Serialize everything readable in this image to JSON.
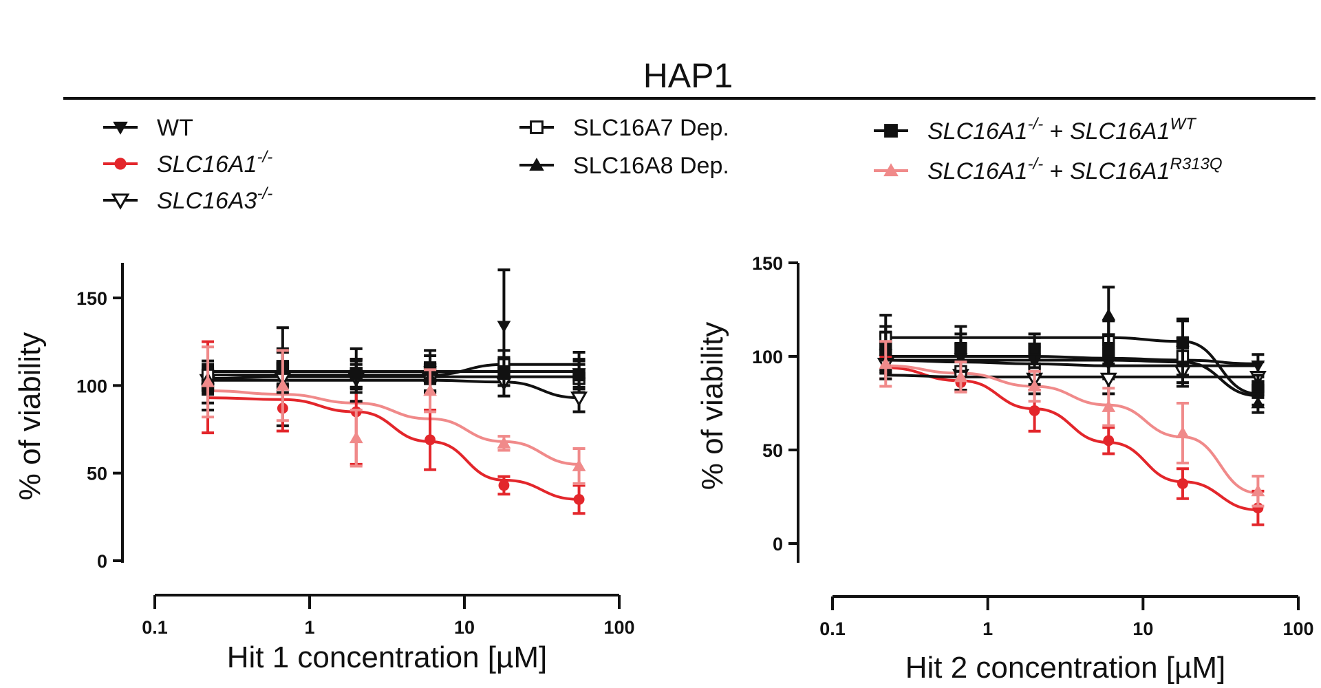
{
  "figure": {
    "title": "HAP1",
    "legend": [
      {
        "key": "wt",
        "parts": [
          {
            "text": "WT"
          }
        ]
      },
      {
        "key": "ko_a1",
        "parts": [
          {
            "text": "SLC16A1",
            "italic": true
          },
          {
            "text": "-/-",
            "sup": true,
            "italic": true
          }
        ]
      },
      {
        "key": "ko_a3",
        "parts": [
          {
            "text": "SLC16A3",
            "italic": true
          },
          {
            "text": "-/-",
            "sup": true,
            "italic": true
          }
        ]
      },
      {
        "key": "dep_a7",
        "parts": [
          {
            "text": "SLC16A7 Dep."
          }
        ]
      },
      {
        "key": "dep_a8",
        "parts": [
          {
            "text": "SLC16A8 Dep."
          }
        ]
      },
      {
        "key": "resc_wt",
        "parts": [
          {
            "text": "SLC16A1",
            "italic": true
          },
          {
            "text": "-/-",
            "sup": true,
            "italic": true
          },
          {
            "text": " + "
          },
          {
            "text": "SLC16A1",
            "italic": true
          },
          {
            "text": "WT",
            "sup": true,
            "italic": true
          }
        ]
      },
      {
        "key": "resc_mut",
        "parts": [
          {
            "text": "SLC16A1",
            "italic": true
          },
          {
            "text": "-/-",
            "sup": true,
            "italic": true
          },
          {
            "text": " + "
          },
          {
            "text": "SLC16A1",
            "italic": true
          },
          {
            "text": "R313Q",
            "sup": true,
            "italic": true
          }
        ]
      }
    ],
    "colors": {
      "black": "#111111",
      "red": "#e3262b",
      "pink": "#f08a8a"
    }
  },
  "chart_data": [
    {
      "type": "line",
      "xscale": "log",
      "xlabel": "Hit 1 concentration [µM]",
      "ylabel": "% of viability",
      "xlim": [
        0.1,
        100
      ],
      "ylim": [
        0,
        170
      ],
      "xticks": [
        0.1,
        1,
        10,
        100
      ],
      "xtick_labels": [
        "0.1",
        "1",
        "10",
        "100"
      ],
      "yticks": [
        0,
        50,
        100,
        150
      ],
      "ytick_labels": [
        "0",
        "50",
        "100",
        "150"
      ],
      "x": [
        0.22,
        0.67,
        2,
        6,
        18,
        55
      ],
      "series": [
        {
          "name": "WT",
          "marker": "tri-down",
          "color": "#111111",
          "values": [
            98,
            105,
            106,
            108,
            134,
            107
          ],
          "errors": [
            12,
            28,
            15,
            12,
            32,
            12
          ],
          "fit": [
            108,
            108,
            108,
            108,
            108,
            108
          ]
        },
        {
          "name": "SLC16A1-/-",
          "marker": "circle",
          "color": "#e3262b",
          "values": [
            99,
            87,
            85,
            69,
            43,
            35
          ],
          "errors": [
            26,
            13,
            30,
            17,
            5,
            8
          ],
          "fit": [
            93,
            92,
            85,
            68,
            46,
            35
          ]
        },
        {
          "name": "SLC16A3-/-",
          "marker": "tri-down-open",
          "color": "#111111",
          "values": [
            103,
            104,
            104,
            104,
            102,
            93
          ],
          "errors": [
            8,
            8,
            8,
            8,
            8,
            8
          ],
          "fit": [
            103,
            103,
            103,
            103,
            102,
            93
          ]
        },
        {
          "name": "SLC16A7 Dep.",
          "marker": "square-open",
          "color": "#111111",
          "values": [
            106,
            111,
            107,
            105,
            112,
            104
          ],
          "errors": [
            8,
            10,
            8,
            8,
            8,
            8
          ],
          "fit": [
            106,
            106,
            106,
            106,
            112,
            112
          ]
        },
        {
          "name": "SLC16A8 Dep.",
          "marker": "tri-up",
          "color": "#111111",
          "values": [
            104,
            109,
            106,
            105,
            108,
            107
          ],
          "errors": [
            8,
            10,
            8,
            8,
            8,
            8
          ],
          "fit": [
            104,
            105,
            105,
            105,
            105,
            105
          ]
        },
        {
          "name": "SLC16A1-/- + SLC16A1WT",
          "marker": "square",
          "color": "#111111",
          "values": [
            100,
            110,
            107,
            109,
            108,
            106
          ],
          "errors": [
            10,
            10,
            8,
            8,
            8,
            8
          ],
          "fit": [
            108,
            108,
            108,
            108,
            108,
            108
          ]
        },
        {
          "name": "SLC16A1-/- + SLC16A1R313Q",
          "marker": "tri-up",
          "color": "#f08a8a",
          "values": [
            102,
            100,
            70,
            97,
            67,
            54
          ],
          "errors": [
            20,
            20,
            16,
            12,
            4,
            10
          ],
          "fit": [
            97,
            95,
            90,
            81,
            68,
            55
          ]
        }
      ]
    },
    {
      "type": "line",
      "xscale": "log",
      "xlabel": "Hit 2 concentration [µM]",
      "ylabel": "% of viability",
      "xlim": [
        0.1,
        100
      ],
      "ylim": [
        -10,
        150
      ],
      "xticks": [
        0.1,
        1,
        10,
        100
      ],
      "xtick_labels": [
        "0.1",
        "1",
        "10",
        "100"
      ],
      "yticks": [
        0,
        50,
        100,
        150
      ],
      "ytick_labels": [
        "0",
        "50",
        "100",
        "150"
      ],
      "x": [
        0.22,
        0.67,
        2,
        6,
        18,
        55
      ],
      "series": [
        {
          "name": "WT",
          "marker": "tri-down",
          "color": "#111111",
          "values": [
            101,
            99,
            97,
            96,
            94,
            95
          ],
          "errors": [
            10,
            8,
            8,
            8,
            8,
            6
          ],
          "fit": [
            98,
            97,
            96,
            95,
            95,
            95
          ]
        },
        {
          "name": "SLC16A1-/-",
          "marker": "circle",
          "color": "#e3262b",
          "values": [
            94,
            86,
            71,
            55,
            32,
            19
          ],
          "errors": [
            6,
            5,
            11,
            7,
            8,
            9
          ],
          "fit": [
            94,
            87,
            72,
            54,
            33,
            18
          ]
        },
        {
          "name": "SLC16A3-/-",
          "marker": "tri-down-open",
          "color": "#111111",
          "values": [
            96,
            90,
            88,
            88,
            92,
            89
          ],
          "errors": [
            8,
            8,
            8,
            8,
            8,
            8
          ],
          "fit": [
            90,
            89,
            89,
            89,
            89,
            89
          ]
        },
        {
          "name": "SLC16A7 Dep.",
          "marker": "square-open",
          "color": "#111111",
          "values": [
            110,
            92,
            93,
            109,
            100,
            82
          ],
          "errors": [
            12,
            10,
            8,
            10,
            10,
            8
          ],
          "fit": [
            110,
            110,
            110,
            110,
            108,
            80
          ]
        },
        {
          "name": "SLC16A8 Dep.",
          "marker": "tri-up",
          "color": "#111111",
          "values": [
            103,
            102,
            102,
            122,
            108,
            75
          ],
          "errors": [
            10,
            10,
            8,
            15,
            12,
            5
          ],
          "fit": [
            98,
            98,
            98,
            98,
            97,
            79
          ]
        },
        {
          "name": "SLC16A1-/- + SLC16A1WT",
          "marker": "square",
          "color": "#111111",
          "values": [
            104,
            104,
            104,
            103,
            107,
            84
          ],
          "errors": [
            12,
            12,
            8,
            8,
            12,
            6
          ],
          "fit": [
            100,
            100,
            100,
            99,
            98,
            96
          ]
        },
        {
          "name": "SLC16A1-/- + SLC16A1R313Q",
          "marker": "tri-up",
          "color": "#f08a8a",
          "values": [
            96,
            89,
            84,
            73,
            59,
            28
          ],
          "errors": [
            12,
            8,
            8,
            10,
            16,
            8
          ],
          "fit": [
            95,
            91,
            84,
            74,
            57,
            27
          ]
        }
      ]
    }
  ]
}
